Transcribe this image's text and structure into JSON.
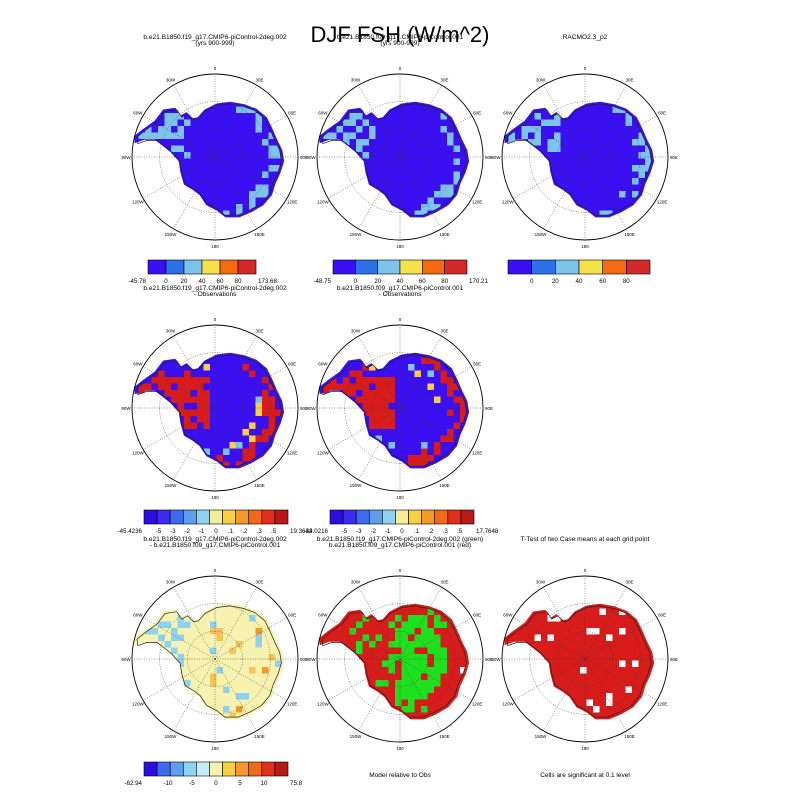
{
  "figure": {
    "title": "DJF FSH (W/m^2)"
  },
  "panels": [
    {
      "id": "r1c1",
      "title_line1": "b.e21.B1850.f19_g17.CMIP6-piControl-2deg.002",
      "title_line2": "(yrs 900-999)",
      "map": "abs"
    },
    {
      "id": "r1c2",
      "title_line1": "b.e21.B1850.f09_g17.CMIP6-piControl.001",
      "title_line2": "(yrs 900-999)",
      "map": "abs"
    },
    {
      "id": "r1c3",
      "title_line1": "RACMO2.3_p2",
      "title_line2": "",
      "map": "abs"
    },
    {
      "id": "r2c1",
      "title_line1": "b.e21.B1850.f19_g17.CMIP6-piControl-2deg.002",
      "title_line2": "- Observations",
      "map": "bias"
    },
    {
      "id": "r2c2",
      "title_line1": "b.e21.B1850.f09_g17.CMIP6-piControl.001",
      "title_line2": "- Observations",
      "map": "bias"
    },
    {
      "id": "r3c1",
      "title_line1": "b.e21.B1850.f19_g17.CMIP6-piControl-2deg.002",
      "title_line2": "- b.e21.B1850.f09_g17.CMIP6-piControl.001",
      "map": "diff"
    },
    {
      "id": "r3c2",
      "title_line1": "b.e21.B1850.f19_g17.CMIP6-piControl-2deg.002 (green)",
      "title_line2": "b.e21.B1850.f09_g17.CMIP6-piControl.001 (red)",
      "map": "rel"
    },
    {
      "id": "r3c3",
      "title_line1": "T-Test of two Case means at each grid point",
      "title_line2": "",
      "map": "ttest"
    }
  ],
  "polar_labels": {
    "top": "0",
    "bottom": "180",
    "left": "90W",
    "right": "90E",
    "ring": [
      "30W",
      "60W",
      "120W",
      "150W",
      "150E",
      "120E",
      "60E",
      "30E"
    ]
  },
  "colorbars": [
    {
      "id": "cb1",
      "labels": [
        "-45.78",
        "0",
        "20",
        "40",
        "60",
        "80",
        "173.68"
      ],
      "colors": [
        "#3a10f2",
        "#2d70e8",
        "#7cc4ec",
        "#f4e24a",
        "#f56a10",
        "#d22a2a"
      ]
    },
    {
      "id": "cb2",
      "labels": [
        "-48.75",
        "0",
        "20",
        "40",
        "60",
        "80",
        "170.21"
      ],
      "colors": [
        "#3a10f2",
        "#2d70e8",
        "#7cc4ec",
        "#f4e24a",
        "#f56a10",
        "#d22a2a"
      ]
    },
    {
      "id": "cb3",
      "labels": [
        "",
        "0",
        "20",
        "40",
        "60",
        "80",
        ""
      ],
      "colors": [
        "#3a10f2",
        "#2d70e8",
        "#7cc4ec",
        "#f4e24a",
        "#f56a10",
        "#d22a2a"
      ]
    },
    {
      "id": "cb4",
      "labels": [
        "-45.4236",
        "-5",
        "-3",
        "-2",
        "-1",
        "0",
        ".1",
        ".2",
        ".3",
        ".5",
        "19.3642"
      ],
      "colors": [
        "#2a0ee0",
        "#3c2cf0",
        "#3f6af0",
        "#5f9eef",
        "#8ed2f2",
        "#f4ec9c",
        "#f6d040",
        "#f59a2a",
        "#f06a1c",
        "#e0301c",
        "#b81818"
      ]
    },
    {
      "id": "cb5",
      "labels": [
        "-34.0216",
        "-5",
        "-3",
        "-2",
        "-1",
        "0",
        ".1",
        ".2",
        ".3",
        ".5",
        "17.7648"
      ],
      "colors": [
        "#2a0ee0",
        "#3c2cf0",
        "#3f6af0",
        "#5f9eef",
        "#8ed2f2",
        "#f4ec9c",
        "#f6d040",
        "#f59a2a",
        "#f06a1c",
        "#e0301c",
        "#b81818"
      ]
    },
    {
      "id": "cb6",
      "labels": [
        "-62.94",
        "-10",
        "-5",
        "0",
        "5",
        "10",
        "75.8"
      ],
      "colors": [
        "#2a0ee0",
        "#3f6af0",
        "#5f9eef",
        "#8ed2f2",
        "#c8ecf6",
        "#f8f2b0",
        "#f6d040",
        "#f59a2a",
        "#f06a1c",
        "#e0301c",
        "#b81818"
      ]
    }
  ],
  "notes": {
    "rel": "Model relative to Obs",
    "ttest": "Cells are significant at 0.1 level"
  },
  "colors": {
    "blue": "#3a10f2",
    "light_blue": "#7cc4ec",
    "red": "#d81c1c",
    "green": "#1ee01e",
    "yellow": "#f8f2b0",
    "orange": "#f6c45a"
  }
}
